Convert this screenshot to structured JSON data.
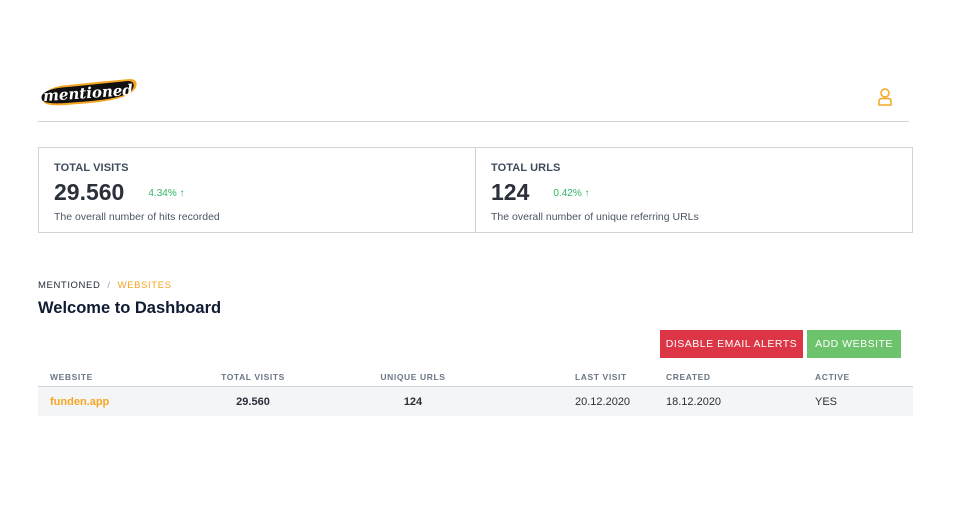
{
  "header": {
    "logo_text": "mentioned",
    "user_icon": "user-icon"
  },
  "stats": [
    {
      "label": "TOTAL VISITS",
      "value": "29.560",
      "change": "4.34% ↑",
      "description": "The overall number of hits recorded"
    },
    {
      "label": "TOTAL URLS",
      "value": "124",
      "change": "0.42% ↑",
      "description": "The overall number of unique referring URLs"
    }
  ],
  "breadcrumb": {
    "root": "MENTIONED",
    "separator": "/",
    "current": "WEBSITES"
  },
  "page_title": "Welcome to Dashboard",
  "buttons": {
    "disable_alerts": "DISABLE EMAIL ALERTS",
    "add_website": "ADD WEBSITE"
  },
  "table": {
    "columns": [
      "WEBSITE",
      "TOTAL VISITS",
      "UNIQUE URLS",
      "LAST VISIT",
      "CREATED",
      "ACTIVE"
    ],
    "rows": [
      {
        "website": "funden.app",
        "total_visits": "29.560",
        "unique_urls": "124",
        "last_visit": "20.12.2020",
        "created": "18.12.2020",
        "active": "YES"
      }
    ]
  },
  "colors": {
    "accent": "#f5a623",
    "positive": "#2fb565",
    "danger": "#dc3545",
    "success": "#6cc36c"
  }
}
